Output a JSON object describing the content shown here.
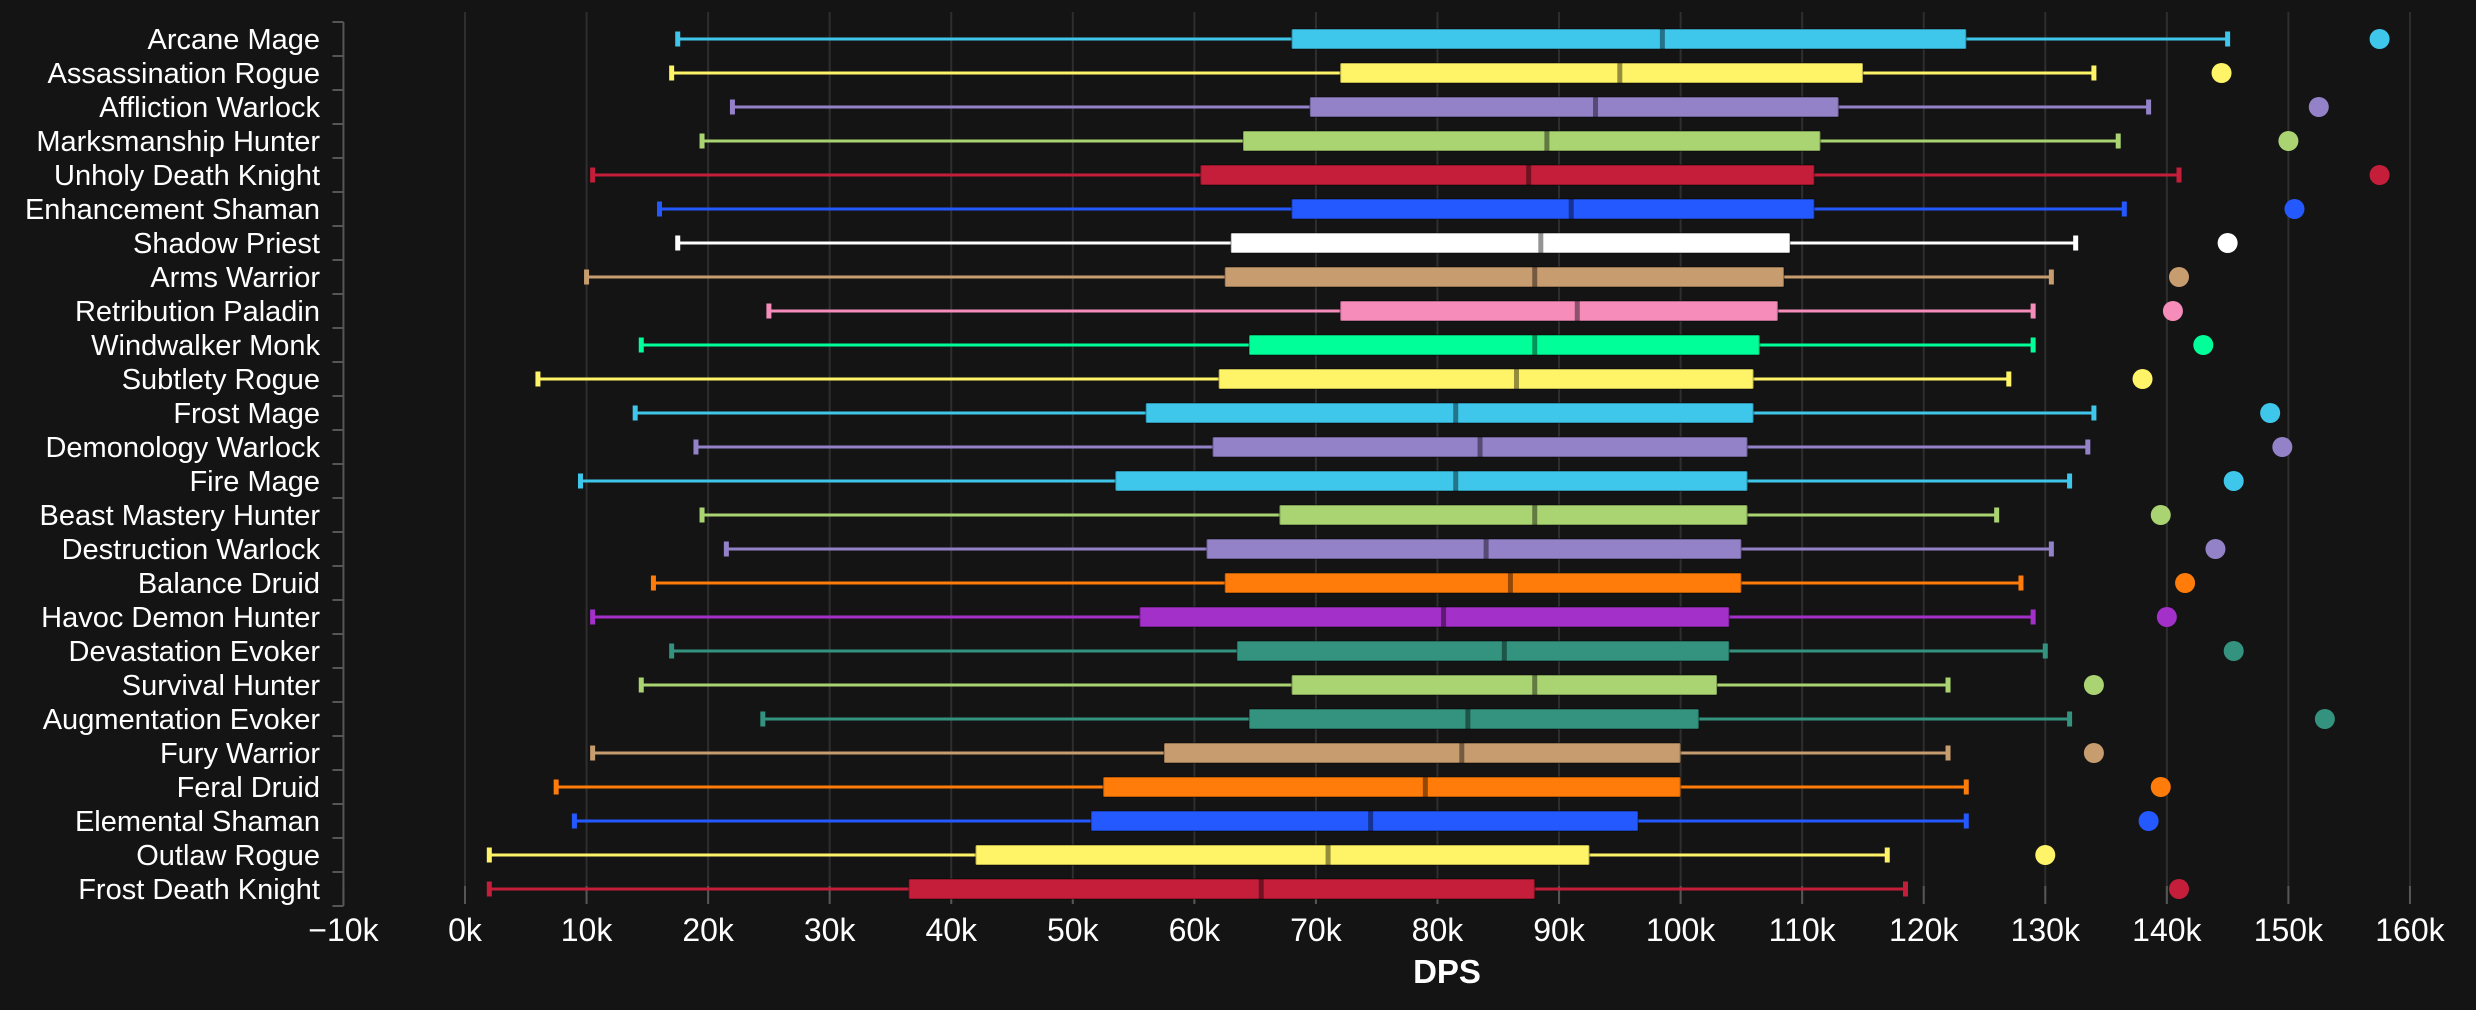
{
  "chart_data": {
    "type": "boxplot",
    "orientation": "horizontal",
    "title": "",
    "xlabel": "DPS",
    "ylabel": "",
    "value_unit": "thousand DPS (k)",
    "x_axis_range_k": [
      -10,
      165
    ],
    "grid": true,
    "legend": "none",
    "x_ticks": [
      "−10k",
      "0k",
      "10k",
      "20k",
      "30k",
      "40k",
      "50k",
      "60k",
      "70k",
      "80k",
      "90k",
      "100k",
      "110k",
      "120k",
      "130k",
      "140k",
      "150k",
      "160k"
    ],
    "x_tick_values_k": [
      -10,
      0,
      10,
      20,
      30,
      40,
      50,
      60,
      70,
      80,
      90,
      100,
      110,
      120,
      130,
      140,
      150,
      160
    ],
    "colors": {
      "background": "#141414",
      "gridline": "#2e2e2e",
      "axis": "#565656",
      "text": "#ffffff",
      "median_overlay": "rgba(0,0,0,0.42)"
    },
    "series": [
      {
        "label": "Arcane Mage",
        "wow_class": "Mage",
        "color": "#3FC7EB",
        "low": 17.5,
        "q1": 68,
        "median": 98.5,
        "q3": 123.5,
        "high": 145,
        "max_point": 157.5
      },
      {
        "label": "Assassination Rogue",
        "wow_class": "Rogue",
        "color": "#FFF468",
        "low": 17,
        "q1": 72,
        "median": 95,
        "q3": 115,
        "high": 134,
        "max_point": 144.5
      },
      {
        "label": "Affliction Warlock",
        "wow_class": "Warlock",
        "color": "#9482C9",
        "low": 22,
        "q1": 69.5,
        "median": 93,
        "q3": 113,
        "high": 138.5,
        "max_point": 152.5
      },
      {
        "label": "Marksmanship Hunter",
        "wow_class": "Hunter",
        "color": "#AAD372",
        "low": 19.5,
        "q1": 64,
        "median": 89,
        "q3": 111.5,
        "high": 136,
        "max_point": 150
      },
      {
        "label": "Unholy Death Knight",
        "wow_class": "Death Knight",
        "color": "#C41E3A",
        "low": 10.5,
        "q1": 60.5,
        "median": 87.5,
        "q3": 111,
        "high": 141,
        "max_point": 157.5
      },
      {
        "label": "Enhancement Shaman",
        "wow_class": "Shaman",
        "color": "#2459FF",
        "low": 16,
        "q1": 68,
        "median": 91,
        "q3": 111,
        "high": 136.5,
        "max_point": 150.5
      },
      {
        "label": "Shadow Priest",
        "wow_class": "Priest",
        "color": "#FFFFFF",
        "low": 17.5,
        "q1": 63,
        "median": 88.5,
        "q3": 109,
        "high": 132.5,
        "max_point": 145
      },
      {
        "label": "Arms Warrior",
        "wow_class": "Warrior",
        "color": "#C79C6E",
        "low": 10,
        "q1": 62.5,
        "median": 88,
        "q3": 108.5,
        "high": 130.5,
        "max_point": 141
      },
      {
        "label": "Retribution Paladin",
        "wow_class": "Paladin",
        "color": "#F58CBA",
        "low": 25,
        "q1": 72,
        "median": 91.5,
        "q3": 108,
        "high": 129,
        "max_point": 140.5
      },
      {
        "label": "Windwalker Monk",
        "wow_class": "Monk",
        "color": "#00FF98",
        "low": 14.5,
        "q1": 64.5,
        "median": 88,
        "q3": 106.5,
        "high": 129,
        "max_point": 143
      },
      {
        "label": "Subtlety Rogue",
        "wow_class": "Rogue",
        "color": "#FFF468",
        "low": 6,
        "q1": 62,
        "median": 86.5,
        "q3": 106,
        "high": 127,
        "max_point": 138
      },
      {
        "label": "Frost Mage",
        "wow_class": "Mage",
        "color": "#3FC7EB",
        "low": 14,
        "q1": 56,
        "median": 81.5,
        "q3": 106,
        "high": 134,
        "max_point": 148.5
      },
      {
        "label": "Demonology Warlock",
        "wow_class": "Warlock",
        "color": "#9482C9",
        "low": 19,
        "q1": 61.5,
        "median": 83.5,
        "q3": 105.5,
        "high": 133.5,
        "max_point": 149.5
      },
      {
        "label": "Fire Mage",
        "wow_class": "Mage",
        "color": "#3FC7EB",
        "low": 9.5,
        "q1": 53.5,
        "median": 81.5,
        "q3": 105.5,
        "high": 132,
        "max_point": 145.5
      },
      {
        "label": "Beast Mastery Hunter",
        "wow_class": "Hunter",
        "color": "#AAD372",
        "low": 19.5,
        "q1": 67,
        "median": 88,
        "q3": 105.5,
        "high": 126,
        "max_point": 139.5
      },
      {
        "label": "Destruction Warlock",
        "wow_class": "Warlock",
        "color": "#9482C9",
        "low": 21.5,
        "q1": 61,
        "median": 84,
        "q3": 105,
        "high": 130.5,
        "max_point": 144
      },
      {
        "label": "Balance Druid",
        "wow_class": "Druid",
        "color": "#FF7C0A",
        "low": 15.5,
        "q1": 62.5,
        "median": 86,
        "q3": 105,
        "high": 128,
        "max_point": 141.5
      },
      {
        "label": "Havoc Demon Hunter",
        "wow_class": "Demon Hunter",
        "color": "#A330C9",
        "low": 10.5,
        "q1": 55.5,
        "median": 80.5,
        "q3": 104,
        "high": 129,
        "max_point": 140
      },
      {
        "label": "Devastation Evoker",
        "wow_class": "Evoker",
        "color": "#33937F",
        "low": 17,
        "q1": 63.5,
        "median": 85.5,
        "q3": 104,
        "high": 130,
        "max_point": 145.5
      },
      {
        "label": "Survival Hunter",
        "wow_class": "Hunter",
        "color": "#AAD372",
        "low": 14.5,
        "q1": 68,
        "median": 88,
        "q3": 103,
        "high": 122,
        "max_point": 134
      },
      {
        "label": "Augmentation Evoker",
        "wow_class": "Evoker",
        "color": "#33937F",
        "low": 24.5,
        "q1": 64.5,
        "median": 82.5,
        "q3": 101.5,
        "high": 132,
        "max_point": 153
      },
      {
        "label": "Fury Warrior",
        "wow_class": "Warrior",
        "color": "#C79C6E",
        "low": 10.5,
        "q1": 57.5,
        "median": 82,
        "q3": 100,
        "high": 122,
        "max_point": 134
      },
      {
        "label": "Feral Druid",
        "wow_class": "Druid",
        "color": "#FF7C0A",
        "low": 7.5,
        "q1": 52.5,
        "median": 79,
        "q3": 100,
        "high": 123.5,
        "max_point": 139.5
      },
      {
        "label": "Elemental Shaman",
        "wow_class": "Shaman",
        "color": "#2459FF",
        "low": 9,
        "q1": 51.5,
        "median": 74.5,
        "q3": 96.5,
        "high": 123.5,
        "max_point": 138.5
      },
      {
        "label": "Outlaw Rogue",
        "wow_class": "Rogue",
        "color": "#FFF468",
        "low": 2,
        "q1": 42,
        "median": 71,
        "q3": 92.5,
        "high": 117,
        "max_point": 130
      },
      {
        "label": "Frost Death Knight",
        "wow_class": "Death Knight",
        "color": "#C41E3A",
        "low": 2,
        "q1": 36.5,
        "median": 65.5,
        "q3": 88,
        "high": 118.5,
        "max_point": 141
      }
    ]
  }
}
